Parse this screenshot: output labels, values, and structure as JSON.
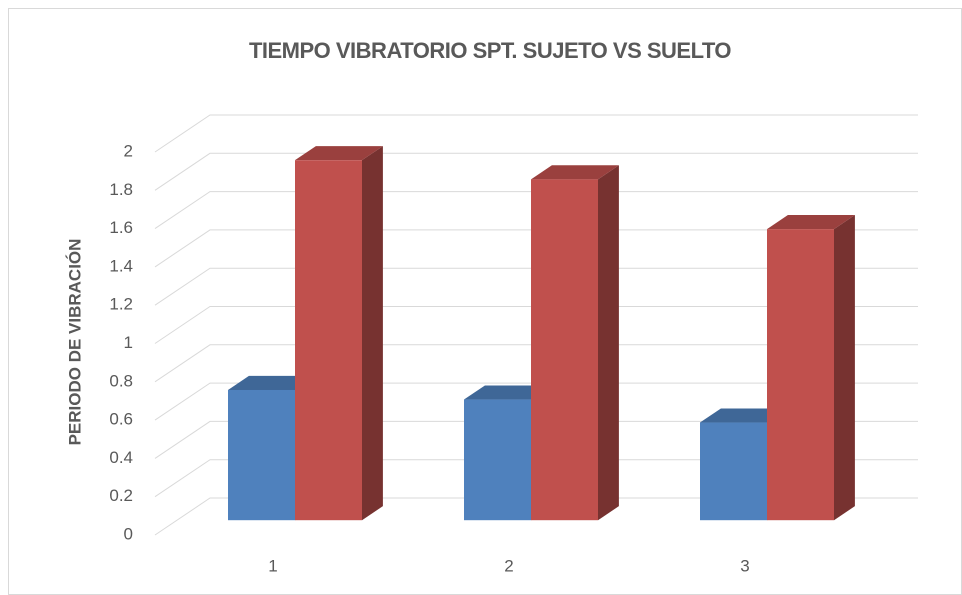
{
  "chart_data": {
    "type": "bar3d",
    "title": "TIEMPO VIBRATORIO SPT. SUJETO VS SUELTO",
    "y_label": "PERIODO DE VIBRACIÓN",
    "categories": [
      "1",
      "2",
      "3"
    ],
    "series": [
      {
        "color": "#4f81bd",
        "values": [
          0.68,
          0.63,
          0.51
        ]
      },
      {
        "color": "#c0504d",
        "values": [
          1.88,
          1.78,
          1.52
        ]
      }
    ],
    "ylim": [
      0,
      2
    ],
    "yticks": [
      0,
      0.2,
      0.4,
      0.6,
      0.8,
      1,
      1.2,
      1.4,
      1.6,
      1.8,
      2
    ],
    "grid": true
  }
}
